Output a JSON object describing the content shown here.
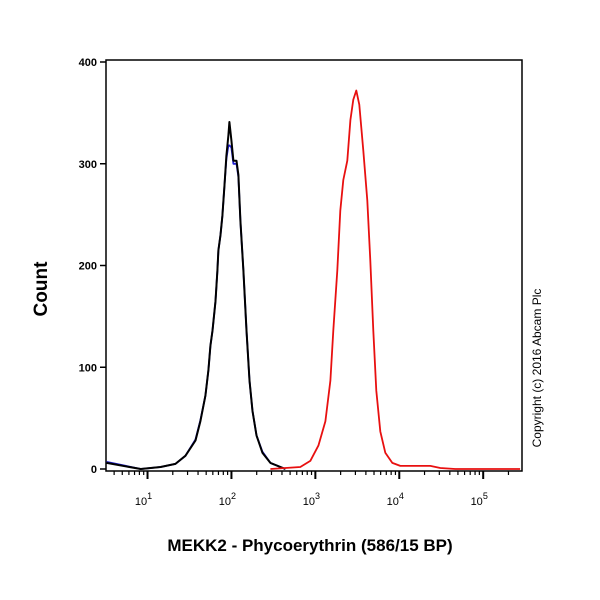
{
  "chart_data": {
    "type": "line",
    "title": "",
    "xlabel": "MEKK2 - Phycoerythrin (586/15 BP)",
    "ylabel": "Count",
    "xscale": "log",
    "xlim": [
      3.2,
      290000
    ],
    "ylim": [
      0,
      400
    ],
    "yticks": [
      0,
      100,
      200,
      300,
      400
    ],
    "xticks": [
      {
        "base": "10",
        "exp": "1",
        "value": 10
      },
      {
        "base": "10",
        "exp": "2",
        "value": 100
      },
      {
        "base": "10",
        "exp": "3",
        "value": 1000
      },
      {
        "base": "10",
        "exp": "4",
        "value": 10000
      },
      {
        "base": "10",
        "exp": "5",
        "value": 100000
      }
    ],
    "grid": false,
    "legend": "none",
    "annotation": "Copyright (c) 2016 Abcam Plc",
    "series": [
      {
        "color": "#1f1fd0",
        "x": [
          3.25,
          8.3,
          14.3,
          21.5,
          28.3,
          37.3,
          42.7,
          49,
          53.2,
          56.2,
          59.4,
          64.5,
          68.1,
          70,
          74,
          78.1,
          82.6,
          87.1,
          92,
          94.6,
          100,
          105.6,
          114.8,
          121,
          128,
          139,
          151,
          164,
          178,
          199,
          234,
          291,
          440
        ],
        "y": [
          7,
          0,
          2,
          5,
          13,
          29,
          48,
          72,
          97,
          121,
          136,
          165,
          195,
          215,
          230,
          249,
          279,
          305,
          318,
          318,
          316,
          300,
          300,
          287,
          244,
          195,
          136,
          87,
          57,
          33,
          17,
          6,
          0
        ]
      },
      {
        "color": "#000000",
        "x": [
          3.25,
          8.3,
          14.3,
          21.5,
          28.3,
          37.3,
          42.7,
          49,
          53.2,
          56.2,
          59.4,
          64.5,
          68.1,
          70,
          74,
          78.1,
          82.6,
          87.1,
          92,
          94.6,
          100,
          105.6,
          114.8,
          121,
          128,
          139,
          151,
          164,
          178,
          199,
          234,
          291,
          440
        ],
        "y": [
          6,
          0,
          2,
          5,
          13,
          28,
          47,
          72,
          97,
          121,
          136,
          165,
          195,
          215,
          230,
          249,
          279,
          308,
          328,
          341,
          323,
          303,
          303,
          289,
          244,
          195,
          136,
          87,
          57,
          33,
          16,
          6,
          0
        ]
      },
      {
        "color": "#e81010",
        "x": [
          291,
          662,
          871,
          1086,
          1316,
          1510,
          1638,
          1828,
          1985,
          2155,
          2404,
          2612,
          2834,
          3076,
          3339,
          3727,
          4159,
          4519,
          4900,
          5320,
          5940,
          6810,
          8260,
          10280,
          23400,
          30800,
          46400,
          275000
        ],
        "y": [
          0,
          2,
          8,
          23,
          47,
          87,
          136,
          195,
          254,
          284,
          303,
          343,
          363,
          372,
          358,
          313,
          264,
          205,
          136,
          77,
          37,
          16,
          6,
          3,
          3,
          1,
          0,
          0
        ]
      }
    ]
  }
}
